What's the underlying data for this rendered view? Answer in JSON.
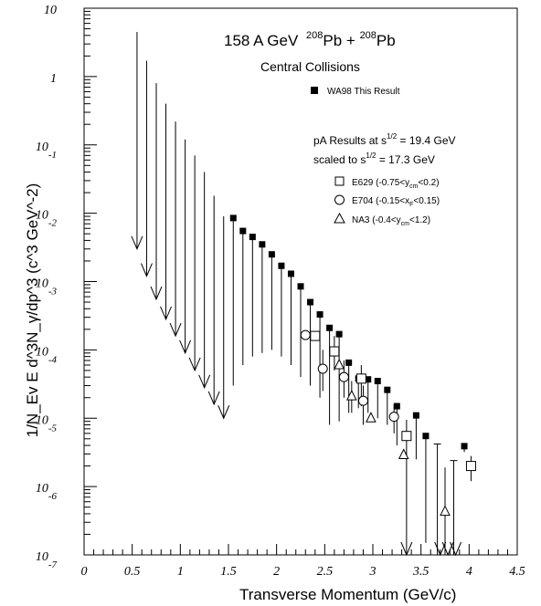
{
  "chart_data": {
    "type": "scatter",
    "title_main": "158 A GeV",
    "title_sup1": "208",
    "title_mid": "Pb + ",
    "title_sup2": "208",
    "title_end": "Pb",
    "subtitle": "Central Collisions",
    "xlabel": "Transverse Momentum (GeV/c)",
    "ylabel": "1/N_Ev E d^3N_γ/dp^3  (c^3 GeV^-2)",
    "x_scale": "linear",
    "y_scale": "log",
    "xlim": [
      0,
      4.5
    ],
    "ylim": [
      1e-07,
      10
    ],
    "x_ticks": [
      {
        "v": 0,
        "t": "0"
      },
      {
        "v": 0.5,
        "t": "0.5"
      },
      {
        "v": 1,
        "t": "1"
      },
      {
        "v": 1.5,
        "t": "1.5"
      },
      {
        "v": 2,
        "t": "2"
      },
      {
        "v": 2.5,
        "t": "2.5"
      },
      {
        "v": 3,
        "t": "3"
      },
      {
        "v": 3.5,
        "t": "3.5"
      },
      {
        "v": 4,
        "t": "4"
      },
      {
        "v": 4.5,
        "t": "4.5"
      }
    ],
    "y_ticks": [
      {
        "v": 10,
        "base": "10",
        "exp": ""
      },
      {
        "v": 1,
        "base": "1",
        "exp": ""
      },
      {
        "v": 0.1,
        "base": "10",
        "exp": "-1"
      },
      {
        "v": 0.01,
        "base": "10",
        "exp": "-2"
      },
      {
        "v": 0.001,
        "base": "10",
        "exp": "-3"
      },
      {
        "v": 0.0001,
        "base": "10",
        "exp": "-4"
      },
      {
        "v": 1e-05,
        "base": "10",
        "exp": "-5"
      },
      {
        "v": 1e-06,
        "base": "10",
        "exp": "-6"
      },
      {
        "v": 1e-07,
        "base": "10",
        "exp": "-7"
      }
    ],
    "legend": {
      "wa98": "WA98 This Result",
      "pa_line1": "pA Results at s",
      "pa_line1_sup": "1/2",
      "pa_line1_end": " = 19.4 GeV",
      "pa_line2": "scaled to  s",
      "pa_line2_sup": "1/2",
      "pa_line2_end": " = 17.3 GeV",
      "e629": "E629  (-0.75<y",
      "e629_sub": "cm",
      "e629_end": "<0.2)",
      "e704": "E704  (-0.15<x",
      "e704_sub": "F",
      "e704_end": "<0.15)",
      "na3": "NA3  (-0.4<y",
      "na3_sub": "cm",
      "na3_end": "<1.2)"
    },
    "series": [
      {
        "name": "WA98 This Result",
        "marker": "filled-square",
        "upper_limits": [
          {
            "x": 0.55,
            "y": 4.5,
            "to": 0.003
          },
          {
            "x": 0.65,
            "y": 1.7,
            "to": 0.0012
          },
          {
            "x": 0.75,
            "y": 0.8,
            "to": 0.00055
          },
          {
            "x": 0.85,
            "y": 0.4,
            "to": 0.00028
          },
          {
            "x": 0.95,
            "y": 0.22,
            "to": 0.00016
          },
          {
            "x": 1.05,
            "y": 0.12,
            "to": 9e-05
          },
          {
            "x": 1.15,
            "y": 0.07,
            "to": 5e-05
          },
          {
            "x": 1.25,
            "y": 0.04,
            "to": 2.8e-05
          },
          {
            "x": 1.35,
            "y": 0.018,
            "to": 1.6e-05
          },
          {
            "x": 1.45,
            "y": 0.009,
            "to": 1e-05
          }
        ],
        "points": [
          {
            "x": 1.55,
            "y": 0.0085,
            "lo": 3e-05
          },
          {
            "x": 1.65,
            "y": 0.0055,
            "lo": 6e-05
          },
          {
            "x": 1.75,
            "y": 0.0045,
            "lo": 8e-05
          },
          {
            "x": 1.85,
            "y": 0.0035,
            "lo": 9e-05
          },
          {
            "x": 1.95,
            "y": 0.0025,
            "lo": 0.0001
          },
          {
            "x": 2.05,
            "y": 0.0017,
            "lo": 8e-05
          },
          {
            "x": 2.15,
            "y": 0.0013,
            "lo": 6e-05
          },
          {
            "x": 2.25,
            "y": 0.00085,
            "lo": 4e-05
          },
          {
            "x": 2.35,
            "y": 0.0005,
            "lo": 3e-05
          },
          {
            "x": 2.45,
            "y": 0.00033,
            "lo": 2e-05
          },
          {
            "x": 2.55,
            "y": 0.00021,
            "lo": 8e-06
          },
          {
            "x": 2.65,
            "y": 0.00017,
            "lo": 9e-06
          },
          {
            "x": 2.75,
            "y": 6.5e-05,
            "lo": 1.2e-05
          },
          {
            "x": 2.85,
            "y": 3.8e-05,
            "lo": 1.4e-05
          },
          {
            "x": 2.95,
            "y": 3.7e-05,
            "lo": 1.2e-05
          },
          {
            "x": 3.05,
            "y": 3.5e-05,
            "lo": 1e-05
          },
          {
            "x": 3.15,
            "y": 2.6e-05,
            "lo": 8e-06
          },
          {
            "x": 3.25,
            "y": 1.5e-05,
            "lo": 4e-06
          },
          {
            "x": 3.45,
            "y": 1.1e-05,
            "lo": 2.5e-06
          },
          {
            "x": 3.55,
            "y": 5.5e-06,
            "lo": 1.5e-07
          },
          {
            "x": 3.95,
            "y": 3.9e-06,
            "lo": 3.2e-06
          }
        ]
      },
      {
        "name": "E629",
        "marker": "open-square",
        "points": [
          {
            "x": 2.4,
            "y": 0.00016,
            "lo": 0.00016,
            "hi": 0.00016
          },
          {
            "x": 2.6,
            "y": 9.5e-05,
            "lo": 5e-05,
            "hi": 0.00016
          },
          {
            "x": 2.88,
            "y": 3.8e-05,
            "lo": 1.5e-05,
            "hi": 6e-05
          },
          {
            "x": 3.35,
            "y": 5.5e-06,
            "lo": 1e-07,
            "hi": 9.5e-06
          },
          {
            "x": 4.02,
            "y": 2e-06,
            "lo": 1.2e-06,
            "hi": 2.8e-06
          }
        ]
      },
      {
        "name": "E704",
        "marker": "open-circle",
        "points": [
          {
            "x": 2.3,
            "y": 0.000165,
            "lo": 0.000165,
            "hi": 0.000165
          },
          {
            "x": 2.48,
            "y": 5.3e-05,
            "lo": 2.5e-05,
            "hi": 0.0001
          },
          {
            "x": 2.7,
            "y": 4e-05,
            "lo": 2e-05,
            "hi": 7e-05
          },
          {
            "x": 2.9,
            "y": 1.8e-05,
            "lo": 8e-06,
            "hi": 3e-05
          },
          {
            "x": 3.22,
            "y": 1.05e-05,
            "lo": 6e-06,
            "hi": 1.6e-05
          }
        ]
      },
      {
        "name": "NA3",
        "marker": "open-triangle",
        "points": [
          {
            "x": 2.65,
            "y": 6e-05,
            "lo": 6e-05,
            "hi": 6e-05
          },
          {
            "x": 2.78,
            "y": 2.1e-05,
            "lo": 1.2e-05,
            "hi": 3.5e-05
          },
          {
            "x": 2.98,
            "y": 1e-05,
            "lo": 1e-05,
            "hi": 1e-05
          },
          {
            "x": 3.32,
            "y": 2.9e-06,
            "lo": 2.9e-06,
            "hi": 2.9e-06
          },
          {
            "x": 3.75,
            "y": 4.3e-07,
            "lo": 1e-07,
            "hi": 1.9e-06
          }
        ]
      }
    ],
    "bottom_limits": [
      {
        "x": 3.35,
        "y": 1e-07
      },
      {
        "x": 3.7,
        "y": 1e-07
      },
      {
        "x": 3.78,
        "y": 1e-07
      },
      {
        "x": 3.86,
        "y": 1e-07
      }
    ],
    "upper_only_bars": [
      {
        "x": 3.67,
        "from": 1e-07,
        "to": 4.2e-06
      },
      {
        "x": 3.84,
        "from": 1e-07,
        "to": 2.4e-06
      }
    ]
  }
}
